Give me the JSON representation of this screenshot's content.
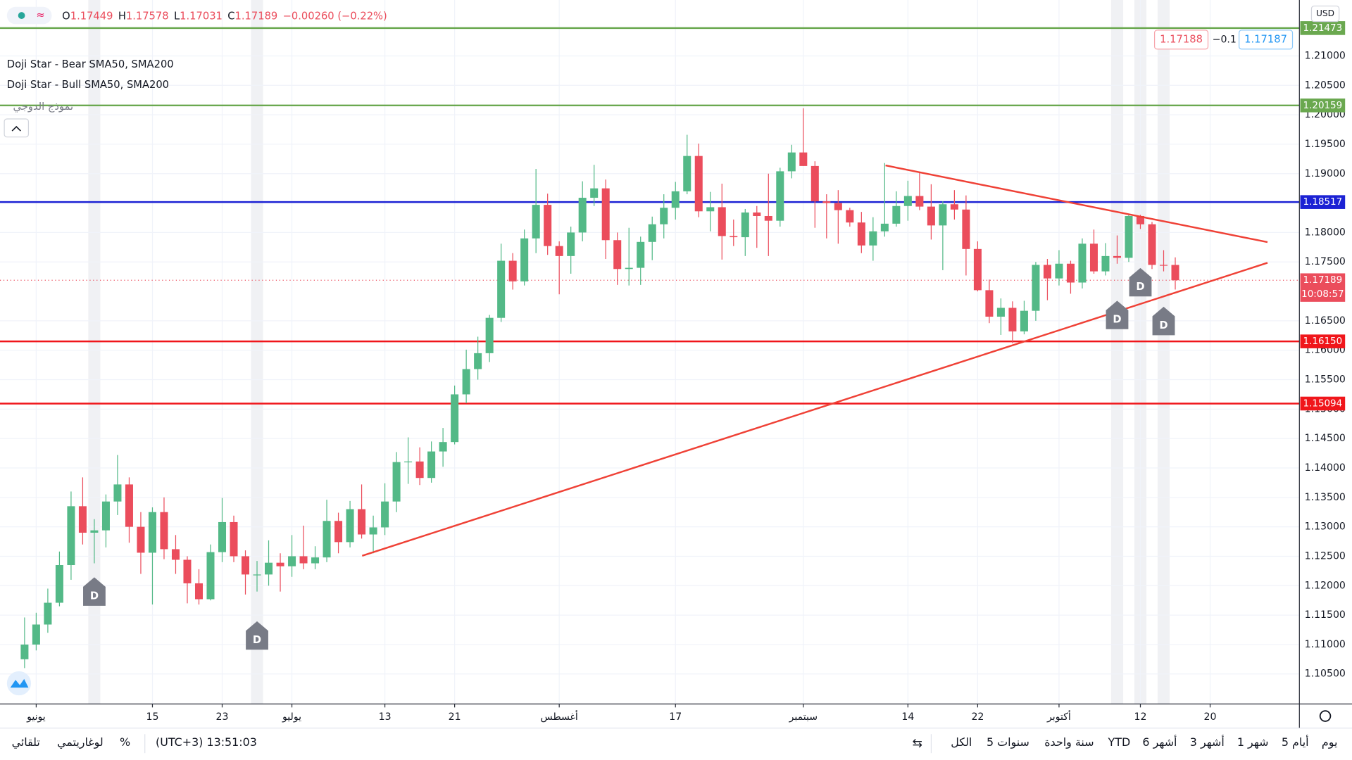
{
  "chart_data": {
    "type": "candlestick",
    "categories": [
      null,
      "يونيو",
      null,
      null,
      null,
      null,
      null,
      null,
      null,
      null,
      null,
      "15",
      null,
      null,
      null,
      null,
      null,
      "23",
      null,
      null,
      null,
      null,
      null,
      "يوليو",
      null,
      null,
      null,
      null,
      null,
      null,
      null,
      "13",
      null,
      null,
      null,
      null,
      null,
      "21",
      null,
      null,
      null,
      null,
      null,
      null,
      null,
      null,
      "أغسطس",
      null,
      null,
      null,
      null,
      null,
      null,
      null,
      null,
      null,
      "17",
      null,
      null,
      null,
      null,
      null,
      null,
      null,
      null,
      null,
      null,
      "سبتمبر",
      null,
      null,
      null,
      null,
      null,
      null,
      null,
      null,
      "14",
      null,
      null,
      null,
      null,
      null,
      "22",
      null,
      null,
      null,
      null,
      null,
      null,
      "أكتوبر",
      null,
      null,
      null,
      null,
      null,
      null,
      "12",
      null,
      null,
      null,
      null,
      null,
      "20"
    ],
    "open": [
      1.1075,
      1.11,
      1.1134,
      1.1171,
      1.1235,
      1.1335,
      1.129,
      1.1294,
      1.1343,
      1.1372,
      1.13,
      1.1256,
      1.1325,
      1.1262,
      1.1244,
      1.1204,
      1.1177,
      1.1257,
      1.1308,
      1.125,
      1.1219,
      1.1219,
      1.1239,
      1.1233,
      1.125,
      1.1238,
      1.1248,
      1.131,
      1.1274,
      1.133,
      1.1287,
      1.1299,
      1.1343,
      1.141,
      1.1411,
      1.1383,
      1.1428,
      1.1444,
      1.1525,
      1.1568,
      1.1595,
      1.1655,
      1.1752,
      1.1717,
      1.179,
      1.1847,
      1.1777,
      1.176,
      1.18,
      1.1859,
      1.1875,
      1.1787,
      1.1738,
      1.174,
      1.1784,
      1.1814,
      1.1842,
      1.187,
      1.193,
      1.1836,
      1.1843,
      1.1794,
      1.1792,
      1.1834,
      1.1828,
      1.182,
      1.1904,
      1.1936,
      1.1913,
      1.1853,
      1.185,
      1.1838,
      1.1817,
      1.1778,
      1.1802,
      1.1815,
      1.1845,
      1.1862,
      1.1844,
      1.1812,
      1.1848,
      1.1839,
      1.1772,
      1.1702,
      1.1657,
      1.1672,
      1.1632,
      1.1667,
      1.1745,
      1.1722,
      1.1747,
      1.1715,
      1.1781,
      1.1734,
      1.176,
      1.1757,
      1.1828,
      1.1814,
      1.1745,
      1.17449,
      null,
      null,
      null
    ],
    "high": [
      1.1146,
      1.1154,
      1.1195,
      1.1258,
      1.136,
      1.1384,
      1.1313,
      1.1355,
      1.1422,
      1.1384,
      1.1325,
      1.1333,
      1.135,
      1.1286,
      1.125,
      1.1228,
      1.127,
      1.1349,
      1.1319,
      1.126,
      1.1242,
      1.1277,
      1.1255,
      1.1286,
      1.1302,
      1.1267,
      1.1346,
      1.1324,
      1.1344,
      1.1372,
      1.1319,
      1.1374,
      1.1427,
      1.1452,
      1.1435,
      1.1445,
      1.1468,
      1.154,
      1.1601,
      1.1623,
      1.166,
      1.1781,
      1.1765,
      1.1805,
      1.1908,
      1.1866,
      1.1785,
      1.181,
      1.1887,
      1.1915,
      1.189,
      1.18,
      1.1808,
      1.1793,
      1.1827,
      1.1865,
      1.1886,
      1.1966,
      1.1951,
      1.1869,
      1.1883,
      1.1822,
      1.184,
      1.1845,
      1.19,
      1.191,
      1.1949,
      1.2011,
      1.1921,
      1.1865,
      1.1872,
      1.1842,
      1.1835,
      1.1826,
      1.1918,
      1.187,
      1.1888,
      1.1901,
      1.1882,
      1.1853,
      1.1872,
      1.1863,
      1.1785,
      1.172,
      1.1688,
      1.1683,
      1.1684,
      1.175,
      1.1755,
      1.177,
      1.1752,
      1.179,
      1.1805,
      1.1782,
      1.1795,
      1.1832,
      1.183,
      1.1818,
      1.177,
      1.17578,
      null,
      null,
      null
    ],
    "low": [
      1.106,
      1.109,
      1.112,
      1.1165,
      1.121,
      1.127,
      1.1238,
      1.1265,
      1.132,
      1.1273,
      1.122,
      1.1168,
      1.1245,
      1.122,
      1.117,
      1.1168,
      1.1175,
      1.124,
      1.124,
      1.1185,
      1.119,
      1.12,
      1.119,
      1.1215,
      1.1228,
      1.1228,
      1.124,
      1.1255,
      1.1265,
      1.128,
      1.1255,
      1.1286,
      1.1325,
      1.1373,
      1.1371,
      1.1375,
      1.1402,
      1.144,
      1.151,
      1.155,
      1.158,
      1.1648,
      1.1703,
      1.171,
      1.1765,
      1.1762,
      1.1695,
      1.173,
      1.1785,
      1.1845,
      1.1755,
      1.1711,
      1.171,
      1.1711,
      1.1753,
      1.179,
      1.1822,
      1.1865,
      1.1826,
      1.1802,
      1.1754,
      1.1777,
      1.176,
      1.1774,
      1.176,
      1.181,
      1.1892,
      1.1913,
      1.1808,
      1.179,
      1.1781,
      1.181,
      1.1765,
      1.1752,
      1.1793,
      1.181,
      1.182,
      1.1838,
      1.1788,
      1.1736,
      1.1822,
      1.1727,
      1.17,
      1.1646,
      1.1626,
      1.1612,
      1.1627,
      1.165,
      1.1685,
      1.171,
      1.1696,
      1.1705,
      1.173,
      1.1727,
      1.1747,
      1.175,
      1.1806,
      1.1738,
      1.1734,
      1.17031,
      null,
      null,
      null
    ],
    "close": [
      1.11,
      1.1134,
      1.1171,
      1.1235,
      1.1335,
      1.129,
      1.1294,
      1.1343,
      1.1372,
      1.13,
      1.1256,
      1.1325,
      1.1262,
      1.1244,
      1.1204,
      1.1177,
      1.1257,
      1.1308,
      1.125,
      1.1219,
      1.1219,
      1.1239,
      1.1233,
      1.125,
      1.1238,
      1.1248,
      1.131,
      1.1274,
      1.133,
      1.1287,
      1.1299,
      1.1343,
      1.141,
      1.1411,
      1.1383,
      1.1428,
      1.1444,
      1.1525,
      1.1568,
      1.1595,
      1.1655,
      1.1752,
      1.1717,
      1.179,
      1.1847,
      1.1777,
      1.176,
      1.18,
      1.1859,
      1.1875,
      1.1787,
      1.1738,
      1.174,
      1.1784,
      1.1814,
      1.1842,
      1.187,
      1.193,
      1.1836,
      1.1843,
      1.1794,
      1.1792,
      1.1834,
      1.1828,
      1.182,
      1.1904,
      1.1936,
      1.1913,
      1.1853,
      1.185,
      1.1838,
      1.1817,
      1.1778,
      1.1802,
      1.1815,
      1.1845,
      1.1862,
      1.1844,
      1.1812,
      1.1848,
      1.1839,
      1.1772,
      1.1702,
      1.1657,
      1.1672,
      1.1632,
      1.1667,
      1.1745,
      1.1722,
      1.1747,
      1.1715,
      1.1781,
      1.1734,
      1.176,
      1.1757,
      1.1828,
      1.1814,
      1.1745,
      1.17449,
      1.17189,
      null,
      null,
      null
    ],
    "up_color": "#53b987",
    "down_color": "#eb4d5c",
    "ylim": [
      1.0999,
      1.2195
    ],
    "yticks": [
      {
        "value": 1.105,
        "label": "1.10500"
      },
      {
        "value": 1.11,
        "label": "1.11000"
      },
      {
        "value": 1.115,
        "label": "1.11500"
      },
      {
        "value": 1.12,
        "label": "1.12000"
      },
      {
        "value": 1.125,
        "label": "1.12500"
      },
      {
        "value": 1.13,
        "label": "1.13000"
      },
      {
        "value": 1.135,
        "label": "1.13500"
      },
      {
        "value": 1.14,
        "label": "1.14000"
      },
      {
        "value": 1.145,
        "label": "1.14500"
      },
      {
        "value": 1.15,
        "label": "1.15000"
      },
      {
        "value": 1.155,
        "label": "1.15500"
      },
      {
        "value": 1.16,
        "label": "1.16000"
      },
      {
        "value": 1.165,
        "label": "1.16500"
      },
      {
        "value": 1.175,
        "label": "1.17500"
      },
      {
        "value": 1.18,
        "label": "1.18000"
      },
      {
        "value": 1.19,
        "label": "1.19000"
      },
      {
        "value": 1.195,
        "label": "1.19500"
      },
      {
        "value": 1.2,
        "label": "1.20000"
      },
      {
        "value": 1.205,
        "label": "1.20500"
      },
      {
        "value": 1.21,
        "label": "1.21000"
      }
    ],
    "grid": true,
    "hlines": [
      {
        "value": 1.21473,
        "label": "1.21473",
        "color": "#6aa84f"
      },
      {
        "value": 1.20159,
        "label": "1.20159",
        "color": "#6aa84f"
      },
      {
        "value": 1.18517,
        "label": "1.18517",
        "color": "#1c22d4"
      },
      {
        "value": 1.1615,
        "label": "1.16150",
        "color": "#f0161b"
      },
      {
        "value": 1.15094,
        "label": "1.15094",
        "color": "#f0161b"
      }
    ],
    "countdown": "10:08:57",
    "currency": "USD",
    "ohlc_keys": [
      "O",
      "H",
      "L",
      "C"
    ],
    "change": "−0.00260 (−0.22%)",
    "doji_markers": [
      "D",
      "D",
      "D",
      "D",
      "D"
    ]
  },
  "legend": [
    "Doji Star - Bear SMA50, SMA200",
    "Doji Star - Bull SMA50, SMA200",
    "نموذج الدوجي"
  ],
  "trade": {
    "sell": "1.17188",
    "spread": "−0.1",
    "buy": "1.17187"
  },
  "bottom_bar": {
    "ranges": [
      "الكل",
      "5 سنوات",
      "سنة واحدة",
      "YTD",
      "6 أشهر",
      "3 أشهر",
      "1 شهر",
      "5 أيام",
      "يوم"
    ],
    "time": "(UTC+3) 13:51:03",
    "percent": "%",
    "log": "لوغاريتمي",
    "auto": "تلقائي"
  }
}
